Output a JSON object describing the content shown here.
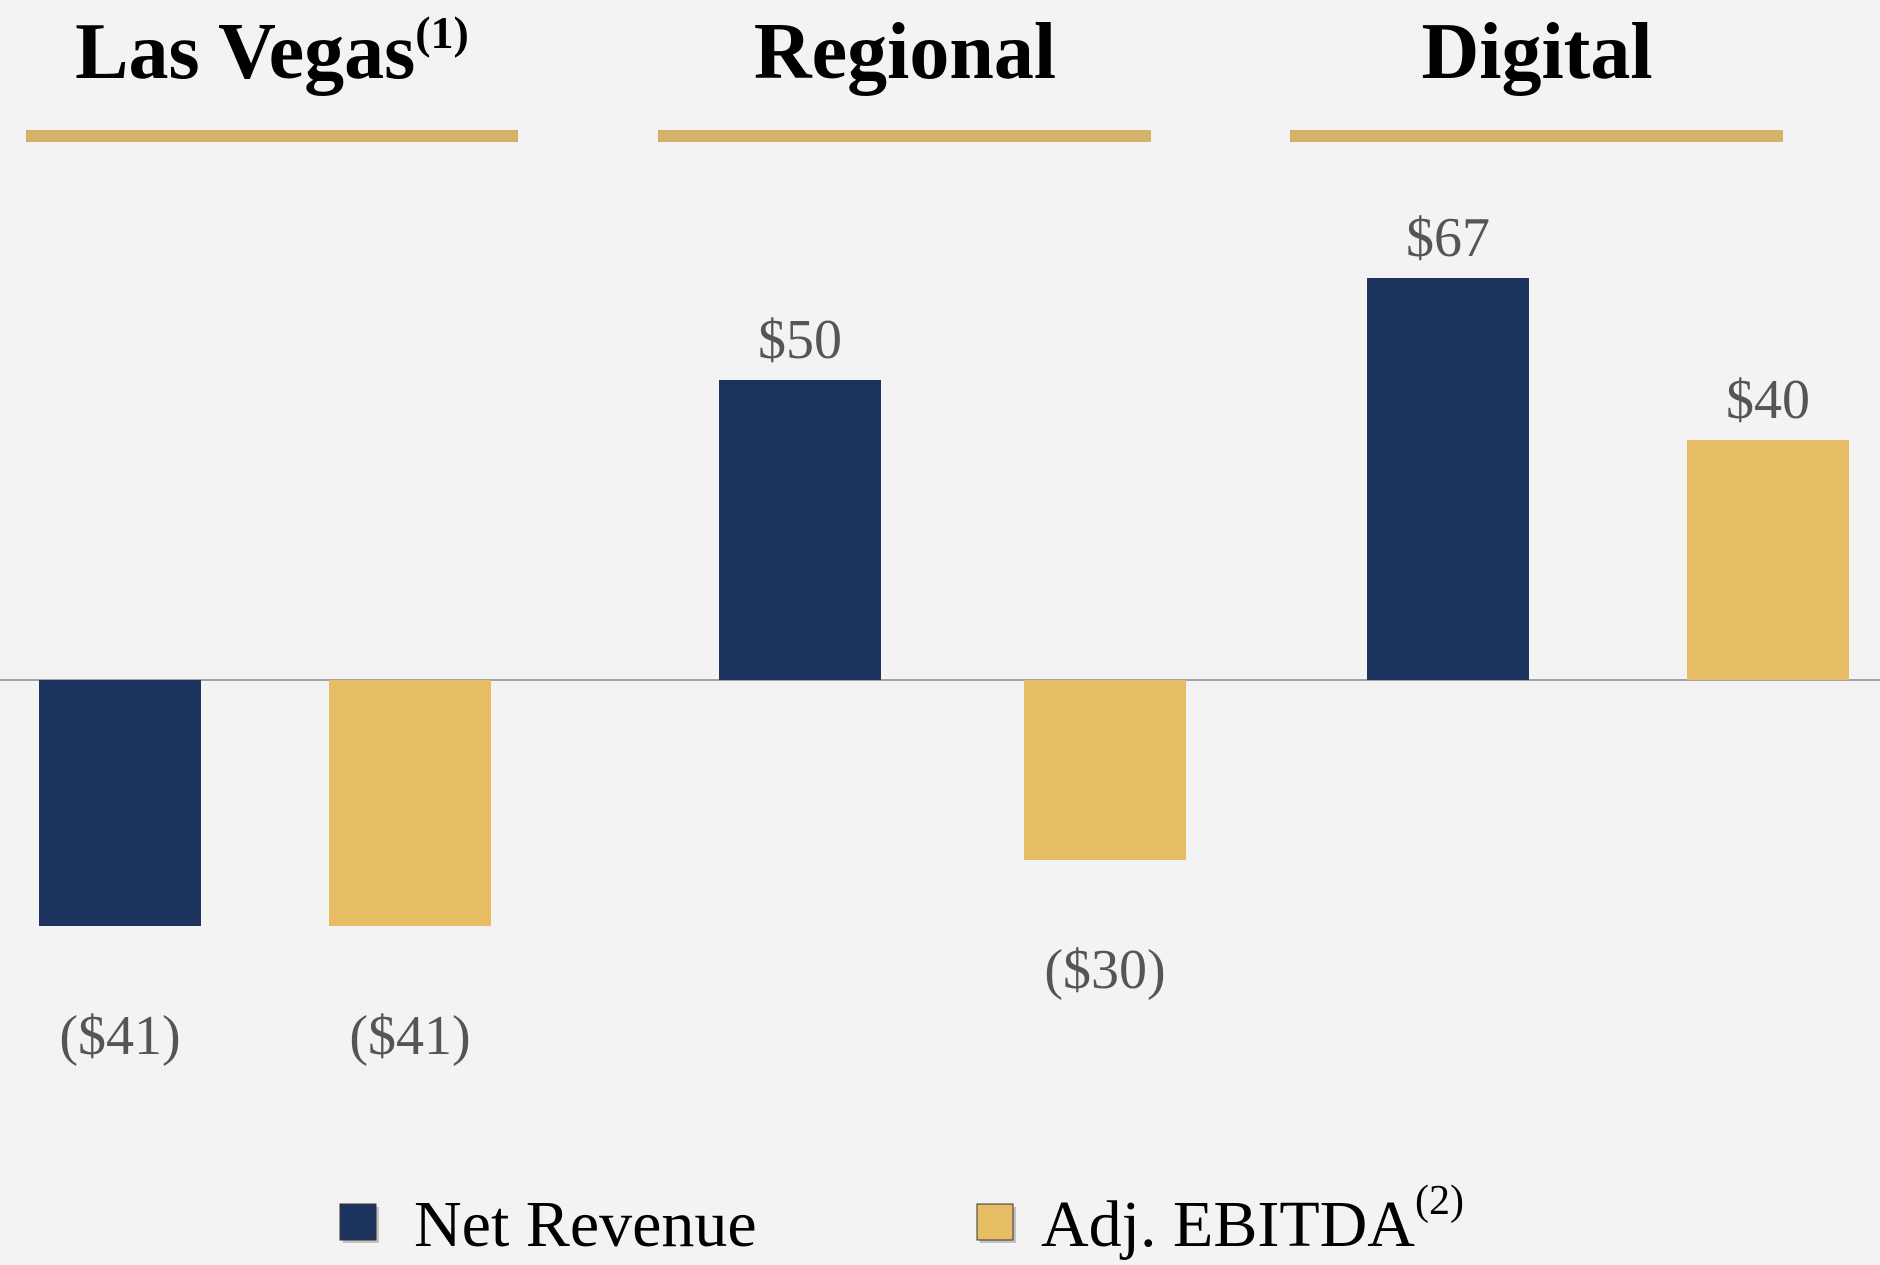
{
  "chart_data": {
    "type": "bar",
    "categories": [
      "Las Vegas",
      "Regional",
      "Digital"
    ],
    "category_superscripts": [
      "(1)",
      null,
      null
    ],
    "series": [
      {
        "name": "Net Revenue",
        "color": "#1c335e",
        "values": [
          -41,
          50,
          67
        ],
        "value_labels": [
          "($41)",
          "$50",
          "$67"
        ]
      },
      {
        "name": "Adj. EBITDA",
        "superscript": "(2)",
        "color": "#e6bd64",
        "values": [
          -41,
          -30,
          40
        ],
        "value_labels": [
          "($41)",
          "($30)",
          "$40"
        ]
      }
    ],
    "ylim": [
      -60,
      80
    ],
    "underline_color": "#d4b26a"
  }
}
